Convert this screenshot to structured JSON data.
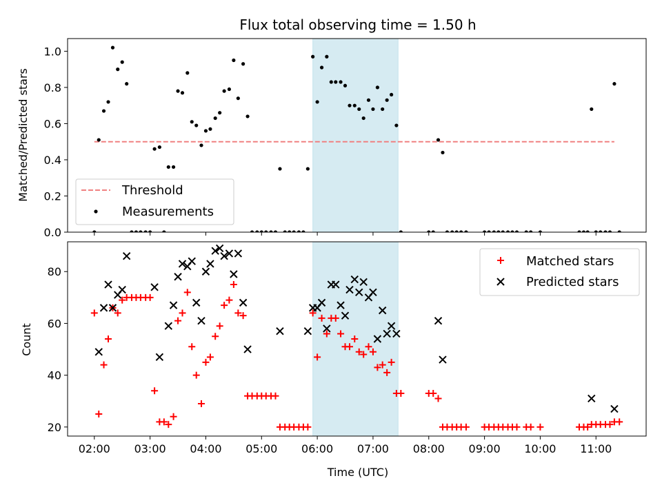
{
  "chart_data": [
    {
      "type": "scatter",
      "title": "Flux total observing time = 1.50 h",
      "xlabel": "",
      "ylabel": "Matched/Predicted stars",
      "xlim": [
        1.52,
        11.9
      ],
      "ylim": [
        0,
        1.07
      ],
      "xticks": [
        2,
        3,
        4,
        5,
        6,
        7,
        8,
        9,
        10,
        11
      ],
      "yticks": [
        0.0,
        0.2,
        0.4,
        0.6,
        0.8,
        1.0
      ],
      "ytick_labels": [
        "0.0",
        "0.2",
        "0.4",
        "0.6",
        "0.8",
        "1.0"
      ],
      "highlight_span": [
        5.92,
        7.45
      ],
      "threshold": {
        "name": "Threshold",
        "value": 0.5,
        "x_range": [
          2.0,
          11.33
        ],
        "color": "#f08080"
      },
      "legend": {
        "placement": "lower-left",
        "entries": [
          "Threshold",
          "Measurements"
        ]
      },
      "series": [
        {
          "name": "Measurements",
          "color": "#000000",
          "points": [
            [
              2.0,
              0.0
            ],
            [
              2.08,
              0.51
            ],
            [
              2.17,
              0.67
            ],
            [
              2.25,
              0.72
            ],
            [
              2.33,
              1.02
            ],
            [
              2.42,
              0.9
            ],
            [
              2.5,
              0.94
            ],
            [
              2.58,
              0.82
            ],
            [
              2.67,
              0.0
            ],
            [
              2.75,
              0.0
            ],
            [
              2.83,
              0.0
            ],
            [
              2.92,
              0.0
            ],
            [
              3.0,
              0.0
            ],
            [
              3.08,
              0.46
            ],
            [
              3.17,
              0.47
            ],
            [
              3.25,
              0.0
            ],
            [
              3.33,
              0.36
            ],
            [
              3.42,
              0.36
            ],
            [
              3.5,
              0.78
            ],
            [
              3.58,
              0.77
            ],
            [
              3.67,
              0.88
            ],
            [
              3.75,
              0.61
            ],
            [
              3.83,
              0.59
            ],
            [
              3.92,
              0.48
            ],
            [
              4.0,
              0.56
            ],
            [
              4.08,
              0.57
            ],
            [
              4.17,
              0.63
            ],
            [
              4.25,
              0.66
            ],
            [
              4.33,
              0.78
            ],
            [
              4.42,
              0.79
            ],
            [
              4.5,
              0.95
            ],
            [
              4.58,
              0.74
            ],
            [
              4.67,
              0.93
            ],
            [
              4.75,
              0.64
            ],
            [
              4.83,
              0.0
            ],
            [
              4.92,
              0.0
            ],
            [
              5.0,
              0.0
            ],
            [
              5.08,
              0.0
            ],
            [
              5.17,
              0.0
            ],
            [
              5.25,
              0.0
            ],
            [
              5.33,
              0.35
            ],
            [
              5.42,
              0.0
            ],
            [
              5.5,
              0.0
            ],
            [
              5.58,
              0.0
            ],
            [
              5.67,
              0.0
            ],
            [
              5.75,
              0.0
            ],
            [
              5.83,
              0.35
            ],
            [
              5.92,
              0.97
            ],
            [
              6.0,
              0.72
            ],
            [
              6.08,
              0.91
            ],
            [
              6.17,
              0.97
            ],
            [
              6.25,
              0.83
            ],
            [
              6.33,
              0.83
            ],
            [
              6.42,
              0.83
            ],
            [
              6.5,
              0.81
            ],
            [
              6.58,
              0.7
            ],
            [
              6.67,
              0.7
            ],
            [
              6.75,
              0.68
            ],
            [
              6.83,
              0.63
            ],
            [
              6.92,
              0.73
            ],
            [
              7.0,
              0.68
            ],
            [
              7.08,
              0.8
            ],
            [
              7.17,
              0.68
            ],
            [
              7.25,
              0.73
            ],
            [
              7.33,
              0.76
            ],
            [
              7.42,
              0.59
            ],
            [
              7.5,
              0.0
            ],
            [
              8.0,
              0.0
            ],
            [
              8.08,
              0.0
            ],
            [
              8.17,
              0.51
            ],
            [
              8.25,
              0.44
            ],
            [
              8.33,
              0.0
            ],
            [
              8.42,
              0.0
            ],
            [
              8.5,
              0.0
            ],
            [
              8.58,
              0.0
            ],
            [
              8.67,
              0.0
            ],
            [
              9.0,
              0.0
            ],
            [
              9.08,
              0.0
            ],
            [
              9.17,
              0.0
            ],
            [
              9.25,
              0.0
            ],
            [
              9.33,
              0.0
            ],
            [
              9.42,
              0.0
            ],
            [
              9.5,
              0.0
            ],
            [
              9.58,
              0.0
            ],
            [
              9.75,
              0.0
            ],
            [
              9.83,
              0.0
            ],
            [
              10.0,
              0.0
            ],
            [
              10.7,
              0.0
            ],
            [
              10.78,
              0.0
            ],
            [
              10.85,
              0.0
            ],
            [
              10.92,
              0.68
            ],
            [
              11.0,
              0.0
            ],
            [
              11.08,
              0.0
            ],
            [
              11.17,
              0.0
            ],
            [
              11.25,
              0.0
            ],
            [
              11.33,
              0.82
            ],
            [
              11.42,
              0.0
            ]
          ]
        }
      ]
    },
    {
      "type": "scatter",
      "title": "",
      "xlabel": "Time (UTC)",
      "ylabel": "Count",
      "xlim": [
        1.52,
        11.9
      ],
      "ylim": [
        16.5,
        91.5
      ],
      "xticks": [
        2,
        3,
        4,
        5,
        6,
        7,
        8,
        9,
        10,
        11
      ],
      "xtick_labels": [
        "02:00",
        "03:00",
        "04:00",
        "05:00",
        "06:00",
        "07:00",
        "08:00",
        "09:00",
        "10:00",
        "11:00"
      ],
      "yticks": [
        20,
        40,
        60,
        80
      ],
      "ytick_labels": [
        "20",
        "40",
        "60",
        "80"
      ],
      "highlight_span": [
        5.92,
        7.45
      ],
      "legend": {
        "placement": "upper-right",
        "entries": [
          "Matched stars",
          "Predicted stars"
        ]
      },
      "series": [
        {
          "name": "Matched stars",
          "marker": "plus",
          "color": "#ff0000",
          "points": [
            [
              2.0,
              64
            ],
            [
              2.08,
              25
            ],
            [
              2.17,
              44
            ],
            [
              2.25,
              54
            ],
            [
              2.33,
              66
            ],
            [
              2.42,
              64
            ],
            [
              2.5,
              69
            ],
            [
              2.58,
              70
            ],
            [
              2.67,
              70
            ],
            [
              2.75,
              70
            ],
            [
              2.83,
              70
            ],
            [
              2.92,
              70
            ],
            [
              3.0,
              70
            ],
            [
              3.08,
              34
            ],
            [
              3.17,
              22
            ],
            [
              3.25,
              22
            ],
            [
              3.33,
              21
            ],
            [
              3.42,
              24
            ],
            [
              3.5,
              61
            ],
            [
              3.58,
              64
            ],
            [
              3.67,
              72
            ],
            [
              3.75,
              51
            ],
            [
              3.83,
              40
            ],
            [
              3.92,
              29
            ],
            [
              4.0,
              45
            ],
            [
              4.08,
              47
            ],
            [
              4.17,
              55
            ],
            [
              4.25,
              59
            ],
            [
              4.33,
              67
            ],
            [
              4.42,
              69
            ],
            [
              4.5,
              75
            ],
            [
              4.58,
              64
            ],
            [
              4.67,
              63
            ],
            [
              4.75,
              32
            ],
            [
              4.83,
              32
            ],
            [
              4.92,
              32
            ],
            [
              5.0,
              32
            ],
            [
              5.08,
              32
            ],
            [
              5.17,
              32
            ],
            [
              5.25,
              32
            ],
            [
              5.33,
              20
            ],
            [
              5.42,
              20
            ],
            [
              5.5,
              20
            ],
            [
              5.58,
              20
            ],
            [
              5.67,
              20
            ],
            [
              5.75,
              20
            ],
            [
              5.83,
              20
            ],
            [
              5.92,
              64
            ],
            [
              6.0,
              47
            ],
            [
              6.08,
              62
            ],
            [
              6.17,
              56
            ],
            [
              6.25,
              62
            ],
            [
              6.33,
              62
            ],
            [
              6.42,
              56
            ],
            [
              6.5,
              51
            ],
            [
              6.58,
              51
            ],
            [
              6.67,
              54
            ],
            [
              6.75,
              49
            ],
            [
              6.83,
              48
            ],
            [
              6.92,
              51
            ],
            [
              7.0,
              49
            ],
            [
              7.08,
              43
            ],
            [
              7.17,
              44
            ],
            [
              7.25,
              41
            ],
            [
              7.33,
              45
            ],
            [
              7.42,
              33
            ],
            [
              7.5,
              33
            ],
            [
              8.0,
              33
            ],
            [
              8.08,
              33
            ],
            [
              8.17,
              31
            ],
            [
              8.25,
              20
            ],
            [
              8.33,
              20
            ],
            [
              8.42,
              20
            ],
            [
              8.5,
              20
            ],
            [
              8.58,
              20
            ],
            [
              8.67,
              20
            ],
            [
              9.0,
              20
            ],
            [
              9.08,
              20
            ],
            [
              9.17,
              20
            ],
            [
              9.25,
              20
            ],
            [
              9.33,
              20
            ],
            [
              9.42,
              20
            ],
            [
              9.5,
              20
            ],
            [
              9.58,
              20
            ],
            [
              9.75,
              20
            ],
            [
              9.83,
              20
            ],
            [
              10.0,
              20
            ],
            [
              10.7,
              20
            ],
            [
              10.78,
              20
            ],
            [
              10.85,
              20
            ],
            [
              10.92,
              21
            ],
            [
              11.0,
              21
            ],
            [
              11.08,
              21
            ],
            [
              11.17,
              21
            ],
            [
              11.25,
              21
            ],
            [
              11.33,
              22
            ],
            [
              11.42,
              22
            ]
          ]
        },
        {
          "name": "Predicted stars",
          "marker": "x",
          "color": "#000000",
          "points": [
            [
              2.08,
              49
            ],
            [
              2.17,
              66
            ],
            [
              2.25,
              75
            ],
            [
              2.33,
              66
            ],
            [
              2.42,
              71
            ],
            [
              2.5,
              73
            ],
            [
              2.58,
              86
            ],
            [
              3.08,
              74
            ],
            [
              3.17,
              47
            ],
            [
              3.33,
              59
            ],
            [
              3.42,
              67
            ],
            [
              3.5,
              78
            ],
            [
              3.58,
              83
            ],
            [
              3.67,
              82
            ],
            [
              3.75,
              84
            ],
            [
              3.83,
              68
            ],
            [
              3.92,
              61
            ],
            [
              4.0,
              80
            ],
            [
              4.08,
              83
            ],
            [
              4.17,
              88
            ],
            [
              4.25,
              89
            ],
            [
              4.33,
              86
            ],
            [
              4.42,
              87
            ],
            [
              4.5,
              79
            ],
            [
              4.58,
              87
            ],
            [
              4.67,
              68
            ],
            [
              4.75,
              50
            ],
            [
              5.33,
              57
            ],
            [
              5.83,
              57
            ],
            [
              5.92,
              66
            ],
            [
              6.0,
              66
            ],
            [
              6.08,
              68
            ],
            [
              6.17,
              58
            ],
            [
              6.25,
              75
            ],
            [
              6.33,
              75
            ],
            [
              6.42,
              67
            ],
            [
              6.5,
              63
            ],
            [
              6.58,
              73
            ],
            [
              6.67,
              77
            ],
            [
              6.75,
              72
            ],
            [
              6.83,
              76
            ],
            [
              6.92,
              70
            ],
            [
              7.0,
              72
            ],
            [
              7.08,
              54
            ],
            [
              7.17,
              65
            ],
            [
              7.25,
              56
            ],
            [
              7.33,
              59
            ],
            [
              7.42,
              56
            ],
            [
              8.17,
              61
            ],
            [
              8.25,
              46
            ],
            [
              10.92,
              31
            ],
            [
              11.33,
              27
            ]
          ]
        }
      ]
    }
  ]
}
